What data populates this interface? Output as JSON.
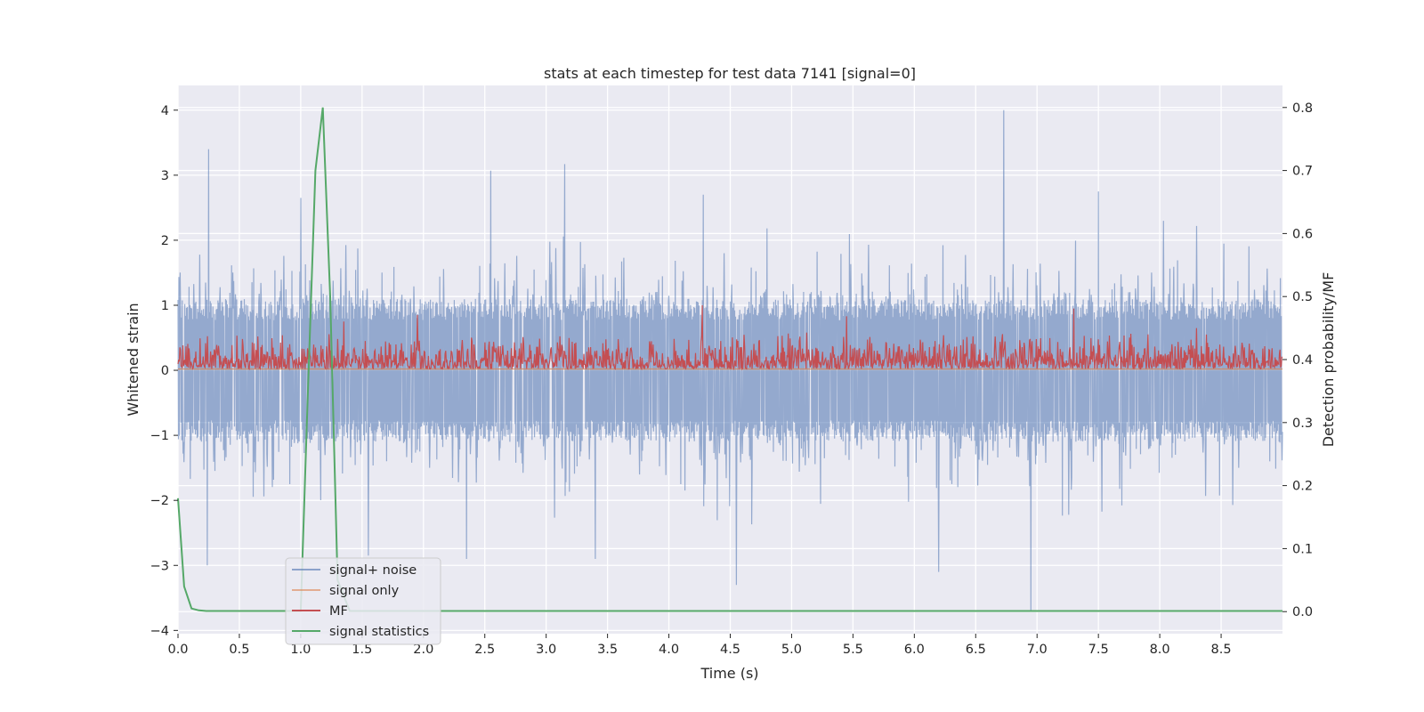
{
  "chart_data": {
    "type": "line",
    "title": "stats at each timestep for test data 7141 [signal=0]",
    "xlabel": "Time (s)",
    "ylabel": "Whitened strain",
    "y2label": "Detection probability/MF",
    "xlim": [
      0,
      9.0
    ],
    "ylim": [
      -4.05,
      4.38
    ],
    "y2lim": [
      -0.035,
      0.835
    ],
    "xticks": [
      0.0,
      0.5,
      1.0,
      1.5,
      2.0,
      2.5,
      3.0,
      3.5,
      4.0,
      4.5,
      5.0,
      5.5,
      6.0,
      6.5,
      7.0,
      7.5,
      8.0,
      8.5
    ],
    "yticks": [
      -4,
      -3,
      -2,
      -1,
      0,
      1,
      2,
      3,
      4
    ],
    "y2ticks": [
      0.0,
      0.1,
      0.2,
      0.3,
      0.4,
      0.5,
      0.6,
      0.7,
      0.8
    ],
    "grid": true,
    "legend_position": "lower-left",
    "series": [
      {
        "name": "signal+ noise",
        "color": "#4c72b0",
        "axis": "left",
        "noise_envelope": {
          "core": 1.1,
          "upper_typical": 2.0,
          "lower_typical": -2.0
        },
        "peaks": [
          [
            0.25,
            3.4
          ],
          [
            0.24,
            -3.0
          ],
          [
            1.0,
            2.65
          ],
          [
            1.55,
            -2.85
          ],
          [
            2.35,
            -2.9
          ],
          [
            2.55,
            3.07
          ],
          [
            3.15,
            3.17
          ],
          [
            3.4,
            -2.9
          ],
          [
            4.28,
            2.7
          ],
          [
            4.55,
            -3.3
          ],
          [
            6.2,
            -3.1
          ],
          [
            6.73,
            4.0
          ],
          [
            6.95,
            -3.7
          ],
          [
            7.5,
            2.75
          ]
        ]
      },
      {
        "name": "signal only",
        "color": "#dd8452",
        "axis": "left",
        "x": [
          0.0,
          9.0
        ],
        "y": [
          0.02,
          0.02
        ]
      },
      {
        "name": "MF",
        "color": "#c44e52",
        "axis": "left",
        "band": [
          0.0,
          0.6
        ],
        "peaks": [
          [
            1.35,
            0.75
          ],
          [
            1.95,
            0.85
          ],
          [
            4.27,
            1.0
          ],
          [
            5.45,
            0.83
          ],
          [
            7.3,
            0.95
          ],
          [
            8.3,
            0.65
          ]
        ]
      },
      {
        "name": "signal statistics",
        "color": "#55a868",
        "axis": "right",
        "x": [
          0.0,
          0.05,
          0.11,
          0.17,
          0.23,
          0.28,
          0.6,
          1.0,
          1.05,
          1.12,
          1.18,
          1.24,
          1.3,
          1.4,
          2.0,
          9.0
        ],
        "y": [
          0.18,
          0.04,
          0.005,
          0.002,
          0.001,
          0.001,
          0.001,
          0.001,
          0.3,
          0.7,
          0.8,
          0.5,
          0.05,
          0.001,
          0.001,
          0.001
        ]
      }
    ]
  }
}
